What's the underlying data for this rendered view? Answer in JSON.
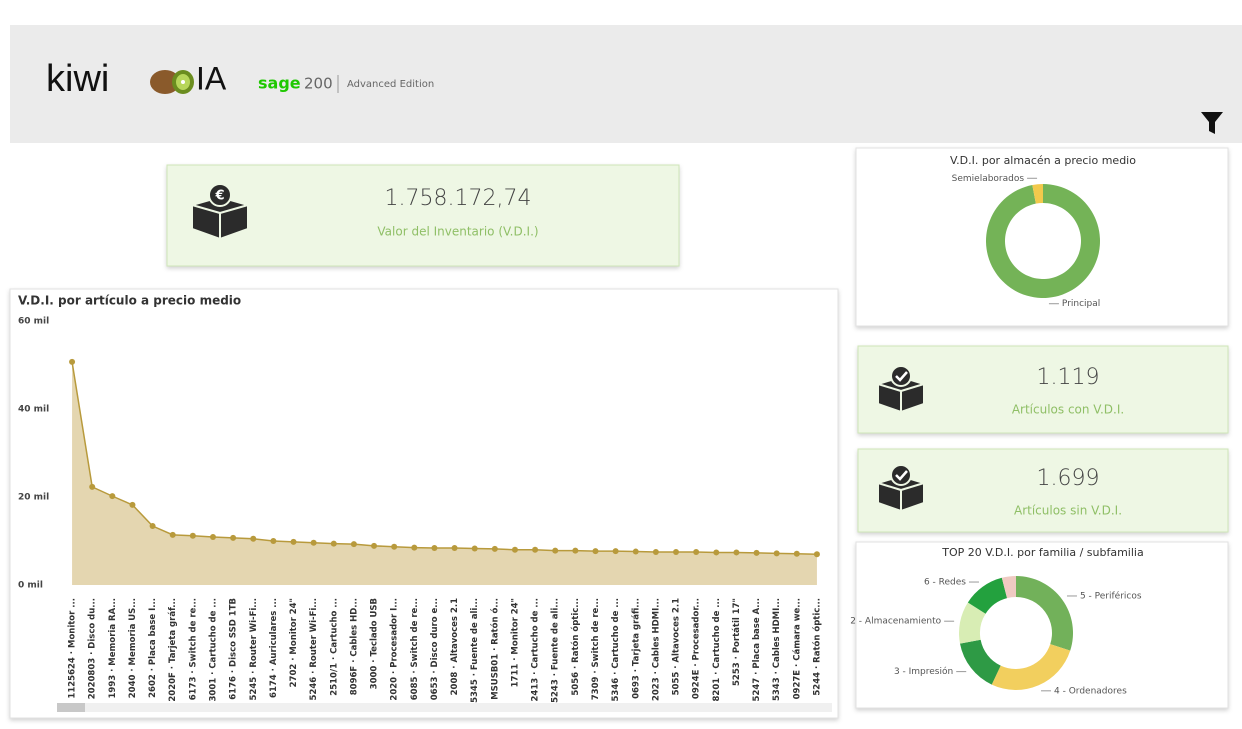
{
  "header": {
    "logo_left": "kiwi",
    "logo_right": "IA",
    "brand": "sage",
    "brand_version": "200",
    "edition": "Advanced Edition"
  },
  "kpis": [
    {
      "value": "1.758.172,74",
      "label": "Valor del Inventario (V.D.I.)"
    },
    {
      "value": "1.119",
      "label": "Artículos con V.D.I."
    },
    {
      "value": "1.699",
      "label": "Artículos sin V.D.I."
    }
  ],
  "chart_data": [
    {
      "type": "area",
      "title": "V.D.I. por artículo a precio medio",
      "categories": [
        "1125624 · Monitor ...",
        "2020803 · Disco du...",
        "1993 · Memoria RA...",
        "2040 · Memoria US...",
        "2602 · Placa base I...",
        "2020F · Tarjeta gráf...",
        "6173 · Switch de re...",
        "3001 · Cartucho de ...",
        "6176 · Disco SSD 1TB",
        "5245 · Router Wi-Fi...",
        "6174 · Auriculares ...",
        "2702 · Monitor 24\"",
        "5246 · Router Wi-Fi...",
        "2510/1 · Cartucho ...",
        "8096F · Cables HD...",
        "3000 · Teclado USB",
        "2020 · Procesador I...",
        "6085 · Switch de re...",
        "0653 · Disco duro e...",
        "2008 · Altavoces 2.1",
        "5345 · Fuente de ali...",
        "MSUSB01 · Ratón ó...",
        "1711 · Monitor 24\"",
        "2413 · Cartucho de ...",
        "5243 · Fuente de ali...",
        "5056 · Ratón óptic...",
        "7309 · Switch de re...",
        "5346 · Cartucho de ...",
        "0693 · Tarjeta gráfi...",
        "2023 · Cables HDMI...",
        "5055 · Altavoces 2.1",
        "0924E · Procesador...",
        "8201 · Cartucho de ...",
        "5253 · Portátil 17\"",
        "5247 · Placa base A...",
        "5343 · Cables HDMI...",
        "0927E · Cámara we...",
        "5244 · Ratón óptic..."
      ],
      "values": [
        50700,
        22300,
        20200,
        18200,
        13400,
        11400,
        11200,
        10900,
        10700,
        10500,
        10000,
        9800,
        9600,
        9400,
        9300,
        8900,
        8700,
        8500,
        8400,
        8400,
        8300,
        8200,
        8000,
        8000,
        7800,
        7800,
        7700,
        7700,
        7600,
        7500,
        7500,
        7500,
        7400,
        7400,
        7300,
        7200,
        7100,
        7000
      ],
      "color": "#b89a3c",
      "fill": "#e4d6b0",
      "ylim": [
        0,
        60000
      ],
      "yticks": [
        {
          "value": 0,
          "label": "0 mil"
        },
        {
          "value": 20000,
          "label": "20 mil"
        },
        {
          "value": 40000,
          "label": "40 mil"
        },
        {
          "value": 60000,
          "label": "60 mil"
        }
      ]
    },
    {
      "type": "donut",
      "title": "V.D.I. por almacén a precio medio",
      "categories": [
        "Principal",
        "Semielaborados"
      ],
      "values": [
        97,
        3
      ],
      "colors": [
        "#74b357",
        "#f2c94c"
      ]
    },
    {
      "type": "donut",
      "title": "TOP 20 V.D.I. por familia / subfamilia",
      "categories": [
        "5 - Periféricos",
        "4 - Ordenadores",
        "3 - Impresión",
        "2 - Almacenamiento",
        "6 - Redes",
        null
      ],
      "values": [
        30,
        27,
        15,
        12,
        12,
        4
      ],
      "colors": [
        "#72b15a",
        "#f2cf5e",
        "#2e9a45",
        "#d8edb4",
        "#23a13e",
        "#efcac2"
      ]
    }
  ]
}
